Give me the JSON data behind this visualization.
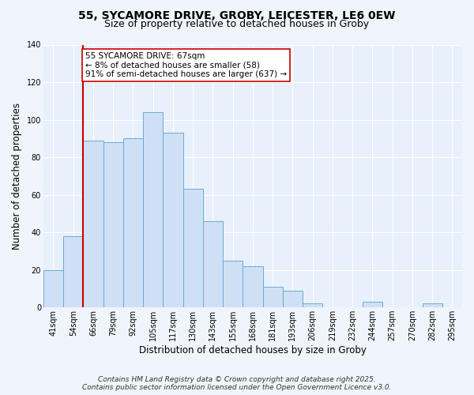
{
  "title_line1": "55, SYCAMORE DRIVE, GROBY, LEICESTER, LE6 0EW",
  "title_line2": "Size of property relative to detached houses in Groby",
  "xlabel": "Distribution of detached houses by size in Groby",
  "ylabel": "Number of detached properties",
  "categories": [
    "41sqm",
    "54sqm",
    "66sqm",
    "79sqm",
    "92sqm",
    "105sqm",
    "117sqm",
    "130sqm",
    "143sqm",
    "155sqm",
    "168sqm",
    "181sqm",
    "193sqm",
    "206sqm",
    "219sqm",
    "232sqm",
    "244sqm",
    "257sqm",
    "270sqm",
    "282sqm",
    "295sqm"
  ],
  "values": [
    20,
    38,
    89,
    88,
    90,
    104,
    93,
    63,
    46,
    25,
    22,
    11,
    9,
    2,
    0,
    0,
    3,
    0,
    0,
    2,
    0
  ],
  "bar_color": "#cfe0f5",
  "bar_edge_color": "#6baad8",
  "bar_width": 1.0,
  "ylim": [
    0,
    140
  ],
  "yticks": [
    0,
    20,
    40,
    60,
    80,
    100,
    120,
    140
  ],
  "vline_index": 2,
  "vline_color": "#cc0000",
  "annotation_text": "55 SYCAMORE DRIVE: 67sqm\n← 8% of detached houses are smaller (58)\n91% of semi-detached houses are larger (637) →",
  "annotation_box_color": "#ffffff",
  "annotation_box_edge_color": "#cc0000",
  "footer_line1": "Contains HM Land Registry data © Crown copyright and database right 2025.",
  "footer_line2": "Contains public sector information licensed under the Open Government Licence v3.0.",
  "plot_bg_color": "#e8f0fb",
  "fig_bg_color": "#f0f4fb",
  "grid_color": "#ffffff",
  "title_fontsize": 10,
  "subtitle_fontsize": 9,
  "axis_label_fontsize": 8.5,
  "tick_fontsize": 7,
  "annotation_fontsize": 7.5,
  "footer_fontsize": 6.5
}
